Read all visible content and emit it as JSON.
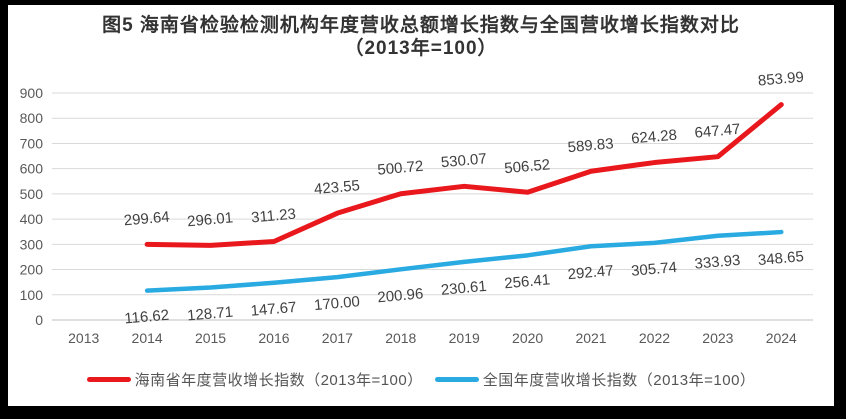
{
  "chart_data": {
    "type": "line",
    "title": "图5  海南省检验检测机构年度营收总额增长指数与全国营收增长指数对比",
    "subtitle": "（2013年=100）",
    "categories": [
      "2013",
      "2014",
      "2015",
      "2016",
      "2017",
      "2018",
      "2019",
      "2020",
      "2021",
      "2022",
      "2023",
      "2024"
    ],
    "series": [
      {
        "name": "海南省年度营收增长指数（2013年=100）",
        "color": "#e8181d",
        "label_position": "above",
        "values": [
          null,
          299.64,
          296.01,
          311.23,
          423.55,
          500.72,
          530.07,
          506.52,
          589.83,
          624.28,
          647.47,
          853.99
        ]
      },
      {
        "name": "全国年度营收增长指数（2013年=100）",
        "color": "#29aae1",
        "label_position": "below",
        "values": [
          null,
          116.62,
          128.71,
          147.67,
          170.0,
          200.96,
          230.61,
          256.41,
          292.47,
          305.74,
          333.93,
          348.65
        ]
      }
    ],
    "ylim": [
      0,
      900
    ],
    "ytick_step": 100,
    "grid": true,
    "legend_position": "bottom",
    "xlabel": "",
    "ylabel": ""
  },
  "colors": {
    "frame": "#000000",
    "background": "#ffffff",
    "gridline": "#d9d9d9",
    "axis_line": "#bfbfbf",
    "tick_text": "#595959",
    "data_label_text": "#404040"
  }
}
